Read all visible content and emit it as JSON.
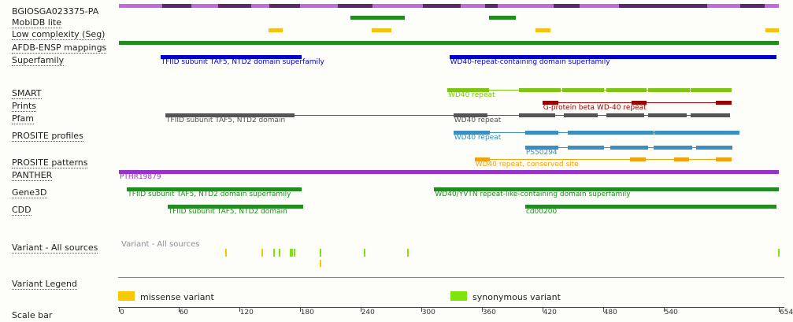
{
  "labels": {
    "protein_id": "BGIOSGA023375-PA",
    "mobidb": "MobiDB lite",
    "low_complexity": "Low complexity (Seg)",
    "afdb": "AFDB-ENSP mappings",
    "superfamily": "Superfamily",
    "smart": "SMART",
    "prints": "Prints",
    "pfam": "Pfam",
    "prosite_profiles": "PROSITE profiles",
    "prosite_patterns": "PROSITE patterns",
    "panther": "PANTHER",
    "gene3d": "Gene3D",
    "cdd": "CDD",
    "variant_all": "Variant - All sources",
    "variant_legend": "Variant Legend",
    "scale_bar": "Scale bar"
  },
  "track_text": {
    "variant_sources": "Variant - All sources",
    "missense": "missense variant",
    "synonymous": "synonymous variant"
  },
  "colors": {
    "exon_dark": "#5c2a6a",
    "exon_light": "#c36ae0",
    "mobidb": "#228b22",
    "low_complexity": "#f2c411",
    "afdb": "#228b22",
    "superfamily": "#0000cc",
    "smart": "#7dc415",
    "prints": "#990000",
    "pfam": "#555555",
    "prosite_profiles": "#3c8ebf",
    "prosite_patterns": "#f2a20c",
    "panther": "#9932cc",
    "gene3d": "#228b22",
    "cdd": "#228b22",
    "missense": "#f5c800",
    "synonymous": "#7fe30c"
  },
  "protein_length": 654,
  "exons": [
    {
      "start": 1,
      "end": 44,
      "shade": "light"
    },
    {
      "start": 44,
      "end": 73,
      "shade": "dark"
    },
    {
      "start": 73,
      "end": 99,
      "shade": "light"
    },
    {
      "start": 99,
      "end": 132,
      "shade": "dark"
    },
    {
      "start": 132,
      "end": 150,
      "shade": "light"
    },
    {
      "start": 150,
      "end": 180,
      "shade": "dark"
    },
    {
      "start": 180,
      "end": 218,
      "shade": "light"
    },
    {
      "start": 218,
      "end": 252,
      "shade": "dark"
    },
    {
      "start": 252,
      "end": 302,
      "shade": "light"
    },
    {
      "start": 302,
      "end": 339,
      "shade": "dark"
    },
    {
      "start": 339,
      "end": 363,
      "shade": "light"
    },
    {
      "start": 363,
      "end": 376,
      "shade": "dark"
    },
    {
      "start": 376,
      "end": 431,
      "shade": "light"
    },
    {
      "start": 431,
      "end": 457,
      "shade": "dark"
    },
    {
      "start": 457,
      "end": 496,
      "shade": "light"
    },
    {
      "start": 496,
      "end": 583,
      "shade": "dark"
    },
    {
      "start": 583,
      "end": 616,
      "shade": "light"
    },
    {
      "start": 616,
      "end": 640,
      "shade": "dark"
    },
    {
      "start": 640,
      "end": 654,
      "shade": "light"
    }
  ],
  "tracks": {
    "mobidb": [
      {
        "start": 230,
        "end": 284
      },
      {
        "start": 367,
        "end": 394
      }
    ],
    "low_complexity": [
      {
        "start": 149,
        "end": 163
      },
      {
        "start": 251,
        "end": 271
      },
      {
        "start": 413,
        "end": 428
      },
      {
        "start": 641,
        "end": 654
      }
    ],
    "afdb": [
      {
        "start": 1,
        "end": 654
      }
    ],
    "superfamily": [
      {
        "start": 42,
        "end": 182,
        "label": "TFIID subunit TAF5, NTD2 domain superfamily"
      },
      {
        "start": 328,
        "end": 652,
        "label": "WD40-repeat-containing domain superfamily"
      }
    ],
    "smart": [
      {
        "start": 326,
        "end": 367,
        "label": "WD40 repeat"
      },
      {
        "start": 397,
        "end": 438
      },
      {
        "start": 440,
        "end": 481
      },
      {
        "start": 483,
        "end": 523
      },
      {
        "start": 525,
        "end": 566
      },
      {
        "start": 567,
        "end": 607
      }
    ],
    "prints": [
      {
        "start": 420,
        "end": 436,
        "label": "G-protein beta WD-40 repeat"
      },
      {
        "start": 508,
        "end": 523
      },
      {
        "start": 592,
        "end": 607
      }
    ],
    "pfam": [
      {
        "start": 47,
        "end": 175,
        "label": "TFIID subunit TAF5, NTD2 domain"
      },
      {
        "start": 332,
        "end": 366,
        "label": "WD40 repeat"
      },
      {
        "start": 397,
        "end": 433
      },
      {
        "start": 441,
        "end": 475
      },
      {
        "start": 483,
        "end": 521
      },
      {
        "start": 525,
        "end": 563
      },
      {
        "start": 567,
        "end": 606
      }
    ],
    "prosite_profiles_row1": [
      {
        "start": 332,
        "end": 368,
        "label": "WD40 repeat"
      },
      {
        "start": 403,
        "end": 436
      },
      {
        "start": 445,
        "end": 530
      },
      {
        "start": 531,
        "end": 615
      }
    ],
    "prosite_profiles_row2": [
      {
        "start": 403,
        "end": 436,
        "label": "PS50294"
      },
      {
        "start": 445,
        "end": 481
      },
      {
        "start": 487,
        "end": 525
      },
      {
        "start": 530,
        "end": 568
      },
      {
        "start": 572,
        "end": 608
      }
    ],
    "prosite_patterns": [
      {
        "start": 353,
        "end": 368,
        "label": "WD40 repeat, conserved site"
      },
      {
        "start": 507,
        "end": 522
      },
      {
        "start": 550,
        "end": 565
      },
      {
        "start": 592,
        "end": 607
      }
    ],
    "panther": [
      {
        "start": 1,
        "end": 654,
        "label": "PTHR19879"
      }
    ],
    "gene3d": [
      {
        "start": 9,
        "end": 182,
        "label": "TFIID subunit TAF5, NTD2 domain superfamily"
      },
      {
        "start": 313,
        "end": 654,
        "label": "WD40/YVTN repeat-like-containing domain superfamily"
      }
    ],
    "cdd": [
      {
        "start": 49,
        "end": 183,
        "label": "TFIID subunit TAF5, NTD2 domain"
      },
      {
        "start": 403,
        "end": 652,
        "label": "cd00200"
      }
    ]
  },
  "variants": [
    {
      "pos": 106,
      "type": "missense"
    },
    {
      "pos": 142,
      "type": "missense"
    },
    {
      "pos": 154,
      "type": "synonymous"
    },
    {
      "pos": 159,
      "type": "synonymous"
    },
    {
      "pos": 170,
      "type": "synonymous"
    },
    {
      "pos": 172,
      "type": "synonymous"
    },
    {
      "pos": 174,
      "type": "synonymous"
    },
    {
      "pos": 200,
      "type": "synonymous"
    },
    {
      "pos": 200,
      "type": "missense",
      "row": 2
    },
    {
      "pos": 243,
      "type": "synonymous"
    },
    {
      "pos": 286,
      "type": "synonymous"
    },
    {
      "pos": 653,
      "type": "synonymous"
    }
  ],
  "scale": {
    "ticks": [
      0,
      60,
      120,
      180,
      240,
      300,
      360,
      420,
      480,
      540,
      654
    ],
    "tick_labels": [
      "0",
      "60",
      "120",
      "180",
      "240",
      "300",
      "360",
      "420",
      "480",
      "540",
      "654"
    ]
  }
}
